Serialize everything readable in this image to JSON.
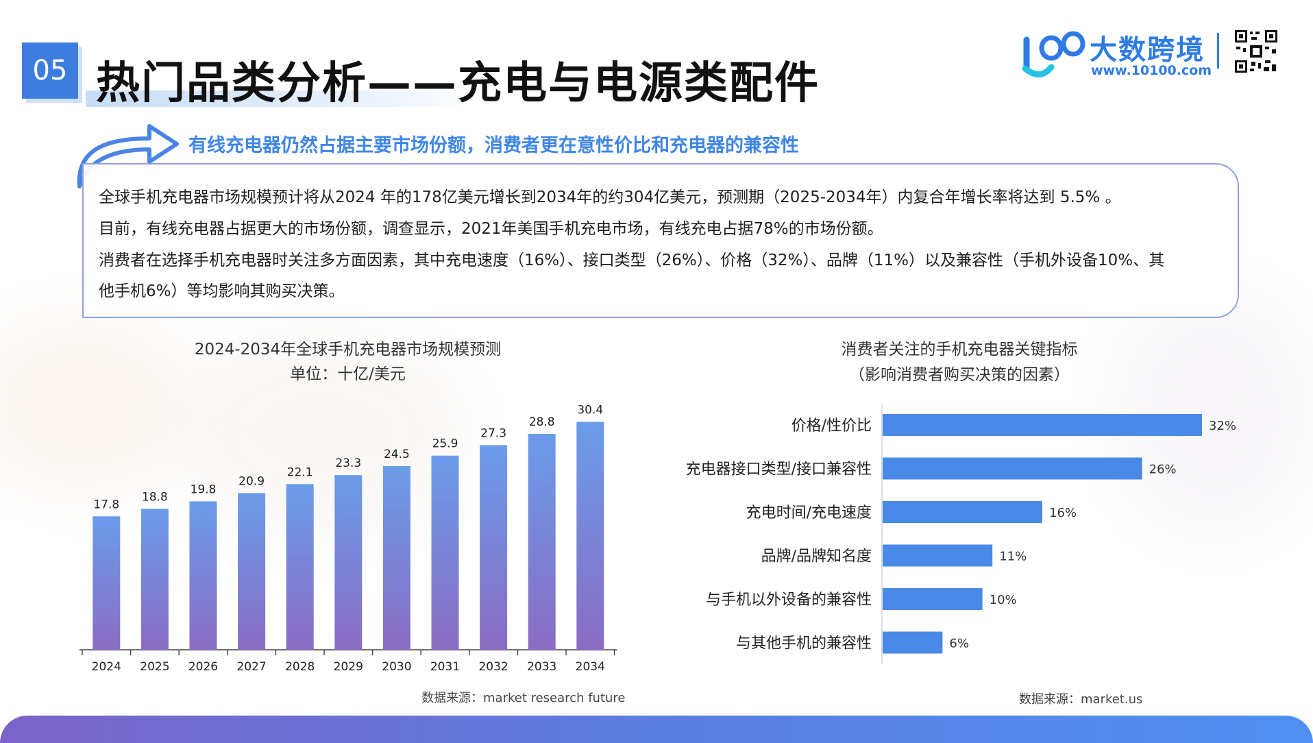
{
  "header": {
    "section_number": "05",
    "title": "热门品类分析——充电与电源类配件",
    "brand_name": "大数跨境",
    "brand_url": "www.10100.com"
  },
  "subtitle": "有线充电器仍然占据主要市场份额，消费者更在意性价比和充电器的兼容性",
  "paragraphs": [
    "全球手机充电器市场规模预计将从2024 年的178亿美元增长到2034年的约304亿美元，预测期（2025-2034年）内复合年增长率将达到 5.5% 。",
    "目前，有线充电器占据更大的市场份额，调查显示，2021年美国手机充电市场，有线充电占据78%的市场份额。",
    "消费者在选择手机充电器时关注多方面因素，其中充电速度（16%）、接口类型（26%）、价格（32%）、品牌（11%）以及兼容性（手机外设备10%、其",
    "他手机6%）等均影响其购买决策。"
  ],
  "colors": {
    "accent": "#3e7de0",
    "subtitle": "#3f86e6",
    "bar_top": "#6b9cea",
    "bar_bottom": "#8a6cc3",
    "hbar": "#4a8ae6"
  },
  "chart_data": [
    {
      "type": "bar",
      "title": "2024-2034年全球手机充电器市场规模预测",
      "subtitle": "单位：十亿/美元",
      "categories": [
        "2024",
        "2025",
        "2026",
        "2027",
        "2028",
        "2029",
        "2030",
        "2031",
        "2032",
        "2033",
        "2034"
      ],
      "values": [
        17.8,
        18.8,
        19.8,
        20.9,
        22.1,
        23.3,
        24.5,
        25.9,
        27.3,
        28.8,
        30.4
      ],
      "data_labels": [
        "17.8",
        "18.8",
        "19.8",
        "20.9",
        "22.1",
        "23.3",
        "24.5",
        "25.9",
        "27.3",
        "28.8",
        "30.4"
      ],
      "ylim": [
        0,
        32
      ],
      "grid": false,
      "source": "数据来源：market research future"
    },
    {
      "type": "bar",
      "orientation": "horizontal",
      "title": "消费者关注的手机充电器关键指标",
      "subtitle": "（影响消费者购买决策的因素）",
      "categories": [
        "价格/性价比",
        "充电器接口类型/接口兼容性",
        "充电时间/充电速度",
        "品牌/品牌知名度",
        "与手机以外设备的兼容性",
        "与其他手机的兼容性"
      ],
      "values": [
        32,
        26,
        16,
        11,
        10,
        6
      ],
      "data_labels": [
        "32%",
        "26%",
        "16%",
        "11%",
        "10%",
        "6%"
      ],
      "xlim": [
        0,
        32
      ],
      "grid": false,
      "source": "数据来源：market.us"
    }
  ]
}
